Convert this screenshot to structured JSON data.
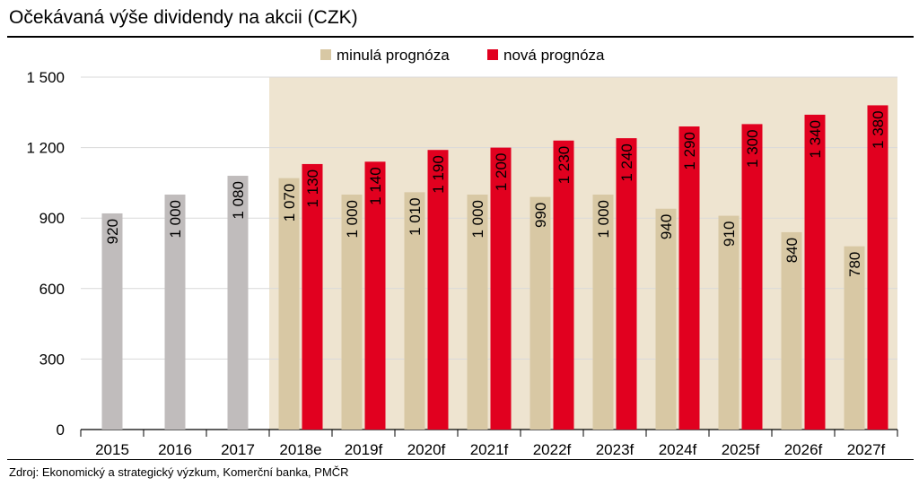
{
  "title": "Očekávaná výše dividendy na akcii (CZK)",
  "source": "Zdroj: Ekonomický a strategický výzkum, Komerční banka, PMČR",
  "colors": {
    "historical": "#c0bcbc",
    "old": "#d8c8a4",
    "new": "#e1001f",
    "forecast_bg": "#eee4d0",
    "grid": "#d9d9d9"
  },
  "chart_data": {
    "type": "bar",
    "title": "Očekávaná výše dividendy na akcii (CZK)",
    "categories": [
      "2015",
      "2016",
      "2017",
      "2018e",
      "2019f",
      "2020f",
      "2021f",
      "2022f",
      "2023f",
      "2024f",
      "2025f",
      "2026f",
      "2027f"
    ],
    "historical": {
      "values": [
        920,
        1000,
        1080
      ],
      "labels": [
        "920",
        "1 000",
        "1 080"
      ]
    },
    "series": [
      {
        "name": "minulá prognóza",
        "values": [
          null,
          null,
          null,
          1070,
          1000,
          1010,
          1000,
          990,
          1000,
          940,
          910,
          840,
          780
        ],
        "labels": [
          "",
          "",
          "",
          "1 070",
          "1 000",
          "1 010",
          "1 000",
          "990",
          "1 000",
          "940",
          "910",
          "840",
          "780"
        ]
      },
      {
        "name": "nová prognóza",
        "values": [
          null,
          null,
          null,
          1130,
          1140,
          1190,
          1200,
          1230,
          1240,
          1290,
          1300,
          1340,
          1380
        ],
        "labels": [
          "",
          "",
          "",
          "1 130",
          "1 140",
          "1 190",
          "1 200",
          "1 230",
          "1 240",
          "1 290",
          "1 300",
          "1 340",
          "1 380"
        ]
      }
    ],
    "ylim": [
      0,
      1500
    ],
    "yticks": [
      0,
      300,
      600,
      900,
      1200,
      1500
    ],
    "ytick_labels": [
      "0",
      "300",
      "600",
      "900",
      "1 200",
      "1 500"
    ],
    "forecast_shading_from": "2018e",
    "grid": true,
    "legend": "top-center"
  }
}
